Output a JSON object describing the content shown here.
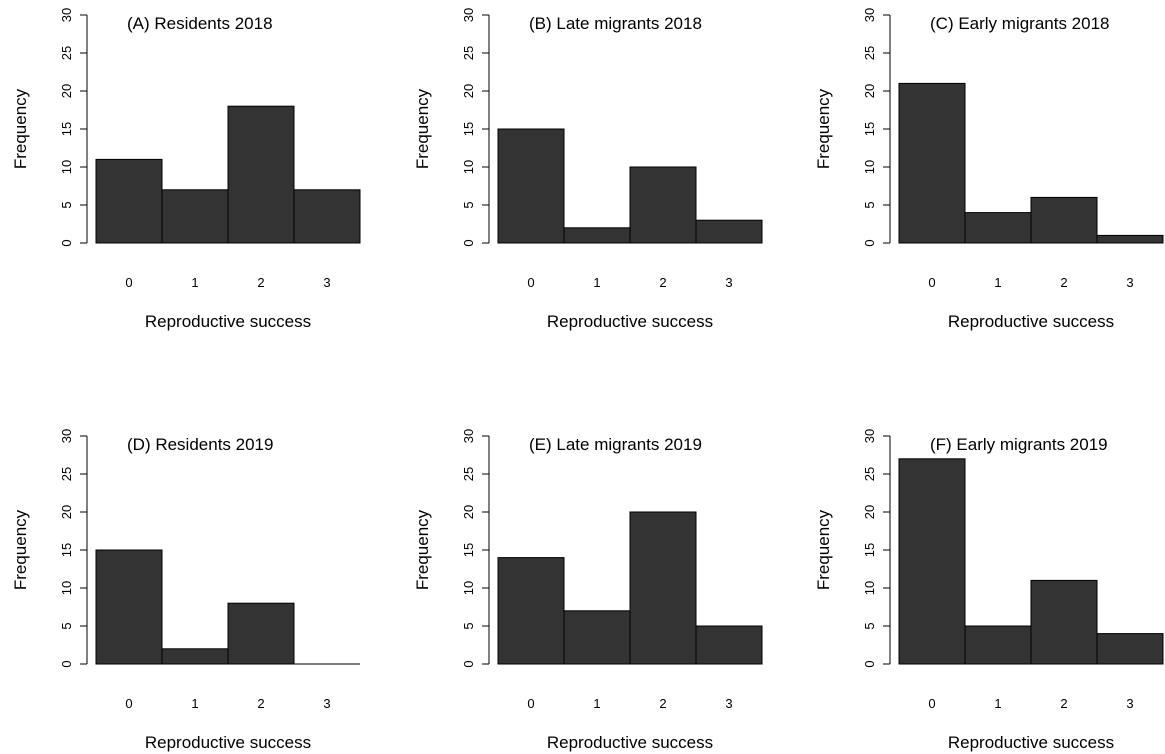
{
  "colors": {
    "bar_fill": "#333333",
    "bar_stroke": "#000000",
    "background": "#ffffff",
    "axis": "#000000"
  },
  "chart_data": [
    {
      "type": "bar",
      "title": "(A) Residents 2018",
      "xlabel": "Reproductive success",
      "ylabel": "Frequency",
      "categories": [
        "0",
        "1",
        "2",
        "3"
      ],
      "values": [
        11,
        7,
        18,
        7
      ],
      "ylim": [
        0,
        30
      ],
      "yticks": [
        "0",
        "5",
        "10",
        "15",
        "20",
        "25",
        "30"
      ],
      "grid": false
    },
    {
      "type": "bar",
      "title": "(B) Late migrants 2018",
      "xlabel": "Reproductive success",
      "ylabel": "Frequency",
      "categories": [
        "0",
        "1",
        "2",
        "3"
      ],
      "values": [
        15,
        2,
        10,
        3
      ],
      "ylim": [
        0,
        30
      ],
      "yticks": [
        "0",
        "5",
        "10",
        "15",
        "20",
        "25",
        "30"
      ],
      "grid": false
    },
    {
      "type": "bar",
      "title": "(C) Early migrants 2018",
      "xlabel": "Reproductive success",
      "ylabel": "Frequency",
      "categories": [
        "0",
        "1",
        "2",
        "3"
      ],
      "values": [
        21,
        4,
        6,
        1
      ],
      "ylim": [
        0,
        30
      ],
      "yticks": [
        "0",
        "5",
        "10",
        "15",
        "20",
        "25",
        "30"
      ],
      "grid": false
    },
    {
      "type": "bar",
      "title": "(D) Residents 2019",
      "xlabel": "Reproductive success",
      "ylabel": "Frequency",
      "categories": [
        "0",
        "1",
        "2",
        "3"
      ],
      "values": [
        15,
        2,
        8,
        0
      ],
      "ylim": [
        0,
        30
      ],
      "yticks": [
        "0",
        "5",
        "10",
        "15",
        "20",
        "25",
        "30"
      ],
      "grid": false
    },
    {
      "type": "bar",
      "title": "(E) Late migrants 2019",
      "xlabel": "Reproductive success",
      "ylabel": "Frequency",
      "categories": [
        "0",
        "1",
        "2",
        "3"
      ],
      "values": [
        14,
        7,
        20,
        5
      ],
      "ylim": [
        0,
        30
      ],
      "yticks": [
        "0",
        "5",
        "10",
        "15",
        "20",
        "25",
        "30"
      ],
      "grid": false
    },
    {
      "type": "bar",
      "title": "(F) Early migrants 2019",
      "xlabel": "Reproductive success",
      "ylabel": "Frequency",
      "categories": [
        "0",
        "1",
        "2",
        "3"
      ],
      "values": [
        27,
        5,
        11,
        4
      ],
      "ylim": [
        0,
        30
      ],
      "yticks": [
        "0",
        "5",
        "10",
        "15",
        "20",
        "25",
        "30"
      ],
      "grid": false
    }
  ]
}
